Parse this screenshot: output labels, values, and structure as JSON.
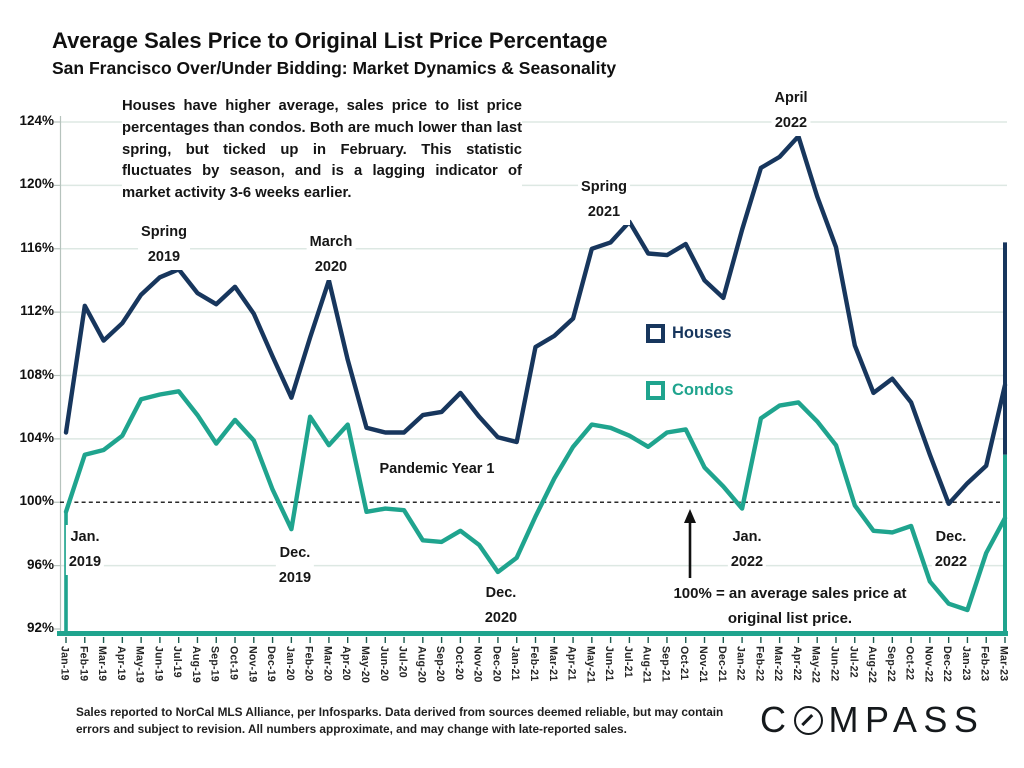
{
  "header": {
    "title": "Average Sales Price to Original List Price Percentage",
    "subtitle": "San Francisco Over/Under Bidding: Market Dynamics & Seasonality"
  },
  "commentary": "Houses have higher average, sales price to list price percentages than condos. Both are much lower than last spring, but ticked up in February. This statistic fluctuates by season, and is a lagging indicator of market activity 3-6 weeks earlier.",
  "chart_data": {
    "type": "line",
    "title": "Average Sales Price to Original List Price Percentage",
    "ylim": [
      92,
      124
    ],
    "yticks": [
      124,
      120,
      116,
      112,
      108,
      104,
      100,
      96,
      92
    ],
    "ytick_suffix": "%",
    "baseline": 100,
    "grid": true,
    "legend_position": "center-right",
    "categories": [
      "Jan-19",
      "Feb-19",
      "Mar-19",
      "Apr-19",
      "May-19",
      "Jun-19",
      "Jul-19",
      "Aug-19",
      "Sep-19",
      "Oct-19",
      "Nov-19",
      "Dec-19",
      "Jan-20",
      "Feb-20",
      "Mar-20",
      "Apr-20",
      "May-20",
      "Jun-20",
      "Jul-20",
      "Aug-20",
      "Sep-20",
      "Oct-20",
      "Nov-20",
      "Dec-20",
      "Jan-21",
      "Feb-21",
      "Mar-21",
      "Apr-21",
      "May-21",
      "Jun-21",
      "Jul-21",
      "Aug-21",
      "Sep-21",
      "Oct-21",
      "Nov-21",
      "Dec-21",
      "Jan-22",
      "Feb-22",
      "Mar-22",
      "Apr-22",
      "May-22",
      "Jun-22",
      "Jul-22",
      "Aug-22",
      "Sep-22",
      "Oct-22",
      "Nov-22",
      "Dec-22",
      "Jan-23",
      "Feb-23",
      "Mar-23"
    ],
    "series": [
      {
        "name": "Houses",
        "color": "#17365d",
        "values": [
          104.4,
          112.4,
          110.2,
          111.3,
          113.1,
          114.2,
          114.7,
          113.2,
          112.5,
          113.6,
          111.9,
          109.2,
          106.6,
          110.4,
          114.0,
          109.0,
          104.7,
          104.4,
          104.4,
          105.5,
          105.7,
          106.9,
          105.4,
          104.1,
          103.8,
          109.8,
          110.5,
          111.6,
          116.0,
          116.4,
          117.7,
          115.7,
          115.6,
          116.3,
          114.0,
          112.9,
          117.2,
          121.1,
          121.8,
          123.1,
          119.3,
          116.1,
          109.9,
          106.9,
          107.8,
          106.3,
          103.0,
          99.9,
          101.2,
          102.3,
          107.4
        ]
      },
      {
        "name": "Condos",
        "color": "#1fa48e",
        "values": [
          99.4,
          103.0,
          103.3,
          104.2,
          106.5,
          106.8,
          107.0,
          105.5,
          103.7,
          105.2,
          103.9,
          100.8,
          98.3,
          105.4,
          103.6,
          104.9,
          99.4,
          99.6,
          99.5,
          97.6,
          97.5,
          98.2,
          97.3,
          95.6,
          96.5,
          99.1,
          101.5,
          103.5,
          104.9,
          104.7,
          104.2,
          103.5,
          104.4,
          104.6,
          102.2,
          101.0,
          99.6,
          105.3,
          106.1,
          106.3,
          105.1,
          103.6,
          99.8,
          98.2,
          98.1,
          98.5,
          95.0,
          93.6,
          93.2,
          96.8,
          99.0
        ]
      }
    ],
    "colors": {
      "grid": "#dde8e3",
      "axis": "#1fa48e",
      "tick": "#1d5b4f",
      "baseline": "#2a2a2a",
      "spine": "#b6c3bd"
    },
    "right_edge_vertical": {
      "top_value": 116.4,
      "split_value": 103
    }
  },
  "annotations": {
    "spring_2019": {
      "line1": "Spring",
      "line2": "2019"
    },
    "march_2020": {
      "line1": "March",
      "line2": "2020"
    },
    "spring_2021": {
      "line1": "Spring",
      "line2": "2021"
    },
    "april_2022": {
      "line1": "April",
      "line2": "2022"
    },
    "jan_2019": {
      "line1": "Jan.",
      "line2": "2019"
    },
    "dec_2019": {
      "line1": "Dec.",
      "line2": "2019"
    },
    "dec_2020": {
      "line1": "Dec.",
      "line2": "2020"
    },
    "jan_2022": {
      "line1": "Jan.",
      "line2": "2022"
    },
    "dec_2022": {
      "line1": "Dec.",
      "line2": "2022"
    },
    "pandemic": {
      "text": "Pandemic Year 1"
    },
    "baseline_note": {
      "line1": "100% = an average sales price at",
      "line2": "original list price."
    }
  },
  "footer": {
    "disclaimer": "Sales reported to NorCal MLS Alliance, per Infosparks. Data derived from sources deemed reliable, but may contain errors and subject to revision. All numbers approximate, and may change with late-reported sales.",
    "brand": "COMPASS",
    "logo_c": "C",
    "logo_rest": "MPASS"
  }
}
